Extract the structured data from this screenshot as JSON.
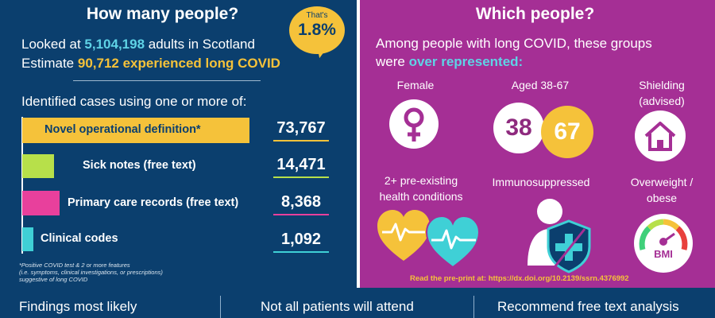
{
  "left_panel": {
    "title": "How many people?",
    "bubble_small": "That's",
    "bubble_big": "1.8%",
    "line1_prefix": "Looked at ",
    "line1_number": "5,104,198",
    "line1_suffix": " adults in Scotland",
    "line2_prefix": "Estimate ",
    "line2_highlight": "90,712 experienced long COVID",
    "section_label": "Identified cases using one or more of:",
    "bars": [
      {
        "label": "Novel operational definition*",
        "value": "73,767",
        "count": 73767,
        "color": "#f5c23a"
      },
      {
        "label": "Sick notes (free text)",
        "value": "14,471",
        "count": 14471,
        "color": "#b7e04a"
      },
      {
        "label": "Primary care records (free text)",
        "value": "8,368",
        "count": 8368,
        "color": "#e8409c"
      },
      {
        "label": "Clinical codes",
        "value": "1,092",
        "count": 1092,
        "color": "#3fd0d6"
      }
    ],
    "footnote_line1": "*Positive COVID test & 2 or more features",
    "footnote_line2": "(i.e. symptoms, clinical investigations, or prescriptions)",
    "footnote_line3": "suggestive of long COVID"
  },
  "right_panel": {
    "title": "Which people?",
    "intro_line1": "Among people with long COVID, these groups",
    "intro_line2_prefix": "were ",
    "intro_line2_highlight": "over represented:",
    "groups": {
      "female": "Female",
      "aged": "Aged 38-67",
      "aged_num1": "38",
      "aged_num2": "67",
      "shielding_line1": "Shielding",
      "shielding_line2": "(advised)",
      "preexisting_line1": "2+ pre-existing",
      "preexisting_line2": "health conditions",
      "immuno": "Immunosuppressed",
      "overweight_line1": "Overweight /",
      "overweight_line2": "obese",
      "bmi": "BMI"
    },
    "preprint": "Read the pre-print at: https://dx.doi.org/10.2139/ssrn.4376992"
  },
  "bottom_bar": {
    "items": [
      "Findings most likely",
      "Not all patients will attend",
      "Recommend free text analysis"
    ]
  },
  "colors": {
    "navy": "#0b3f6e",
    "purple": "#a52f95",
    "yellow": "#f5c23a",
    "cyan": "#5fd3e6"
  },
  "icons": [
    "female-symbol-icon",
    "age-circles-icon",
    "house-icon",
    "hearts-heartbeat-icon",
    "shielded-person-icon",
    "bmi-gauge-icon"
  ]
}
